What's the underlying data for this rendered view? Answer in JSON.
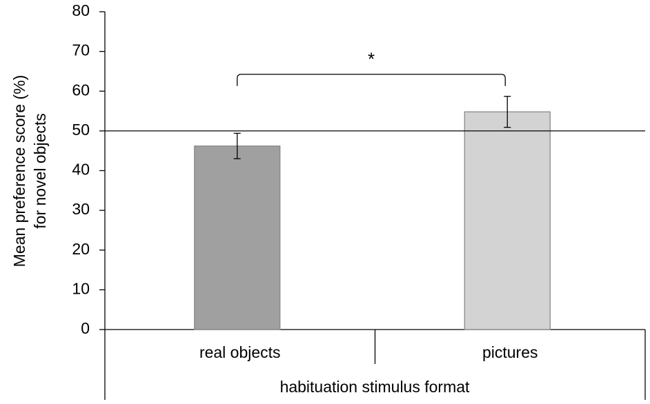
{
  "chart_data": {
    "type": "bar",
    "y_label_lines": [
      "Mean preference score (%)",
      "for novel objects"
    ],
    "x_label": "habituation stimulus format",
    "categories": [
      "real objects",
      "pictures"
    ],
    "values": [
      46.2,
      54.8
    ],
    "errors": [
      3.2,
      3.9
    ],
    "colors": [
      "#a0a0a0",
      "#d3d3d3"
    ],
    "ylim": [
      0,
      80
    ],
    "yticks": [
      0,
      10,
      20,
      30,
      40,
      50,
      60,
      70,
      80
    ],
    "reference_line": 50,
    "annotation": "*"
  }
}
